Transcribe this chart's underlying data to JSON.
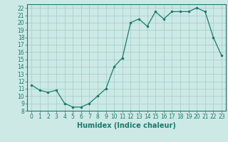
{
  "x": [
    0,
    1,
    2,
    3,
    4,
    5,
    6,
    7,
    8,
    9,
    10,
    11,
    12,
    13,
    14,
    15,
    16,
    17,
    18,
    19,
    20,
    21,
    22,
    23
  ],
  "y": [
    11.5,
    10.8,
    10.5,
    10.8,
    9.0,
    8.5,
    8.5,
    9.0,
    10.0,
    11.0,
    14.0,
    15.2,
    20.0,
    20.5,
    19.5,
    21.5,
    20.5,
    21.5,
    21.5,
    21.5,
    22.0,
    21.5,
    18.0,
    15.5
  ],
  "line_color": "#1a7a6e",
  "marker_color": "#1a7a6e",
  "bg_color": "#cce9e5",
  "grid_color": "#a0ccc8",
  "xlabel": "Humidex (Indice chaleur)",
  "xlim": [
    -0.5,
    23.5
  ],
  "ylim": [
    8,
    22.5
  ],
  "yticks": [
    8,
    9,
    10,
    11,
    12,
    13,
    14,
    15,
    16,
    17,
    18,
    19,
    20,
    21,
    22
  ],
  "xticks": [
    0,
    1,
    2,
    3,
    4,
    5,
    6,
    7,
    8,
    9,
    10,
    11,
    12,
    13,
    14,
    15,
    16,
    17,
    18,
    19,
    20,
    21,
    22,
    23
  ],
  "tick_color": "#1a7a6e",
  "label_fontsize": 7,
  "tick_fontsize": 5.5
}
